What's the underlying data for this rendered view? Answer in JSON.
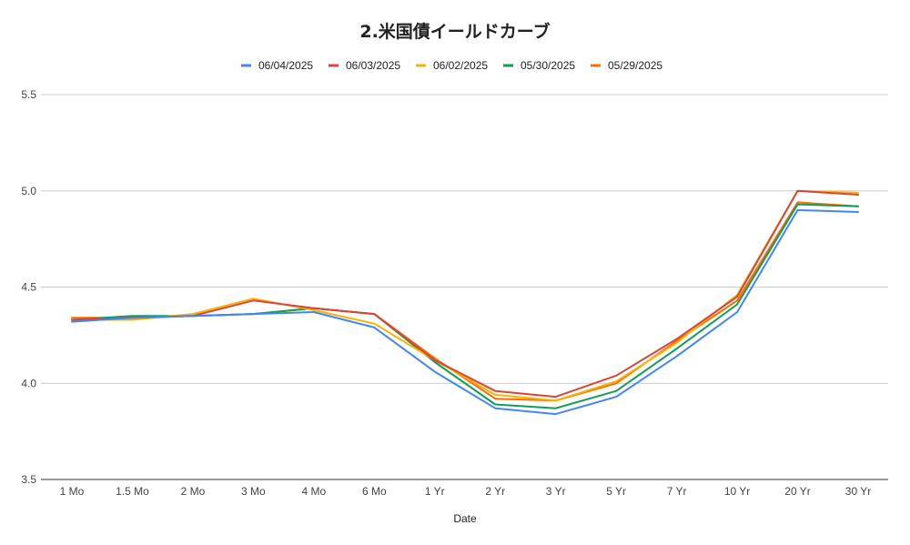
{
  "chart_data": {
    "type": "line",
    "title": "2.米国債イールドカーブ",
    "xlabel": "Date",
    "ylabel": "",
    "categories": [
      "1 Mo",
      "1.5 Mo",
      "2 Mo",
      "3 Mo",
      "4 Mo",
      "6 Mo",
      "1 Yr",
      "2 Yr",
      "3 Yr",
      "5 Yr",
      "7 Yr",
      "10 Yr",
      "20 Yr",
      "30 Yr"
    ],
    "ylim": [
      3.5,
      5.5
    ],
    "yticks": [
      "3.5",
      "4.0",
      "4.5",
      "5.0",
      "5.5"
    ],
    "grid": true,
    "legend_position": "top",
    "series": [
      {
        "name": "06/04/2025",
        "color": "#4285f4",
        "values": [
          4.32,
          4.34,
          4.35,
          4.36,
          4.37,
          4.29,
          4.06,
          3.87,
          3.84,
          3.93,
          4.14,
          4.37,
          4.9,
          4.89
        ]
      },
      {
        "name": "06/03/2025",
        "color": "#db4437",
        "values": [
          4.33,
          4.34,
          4.35,
          4.43,
          4.39,
          4.36,
          4.12,
          3.96,
          3.93,
          4.04,
          4.23,
          4.45,
          5.0,
          4.98
        ]
      },
      {
        "name": "06/02/2025",
        "color": "#f4b400",
        "values": [
          4.33,
          4.33,
          4.36,
          4.44,
          4.38,
          4.31,
          4.12,
          3.94,
          3.91,
          4.01,
          4.21,
          4.46,
          5.0,
          4.99
        ]
      },
      {
        "name": "05/30/2025",
        "color": "#0f9d58",
        "values": [
          4.33,
          4.35,
          4.35,
          4.36,
          4.39,
          4.36,
          4.11,
          3.89,
          3.87,
          3.96,
          4.18,
          4.41,
          4.93,
          4.92
        ]
      },
      {
        "name": "05/29/2025",
        "color": "#ff6d01",
        "values": [
          4.34,
          4.34,
          4.35,
          4.36,
          4.39,
          4.36,
          4.13,
          3.92,
          3.91,
          4.0,
          4.22,
          4.43,
          4.94,
          4.92
        ]
      }
    ]
  }
}
